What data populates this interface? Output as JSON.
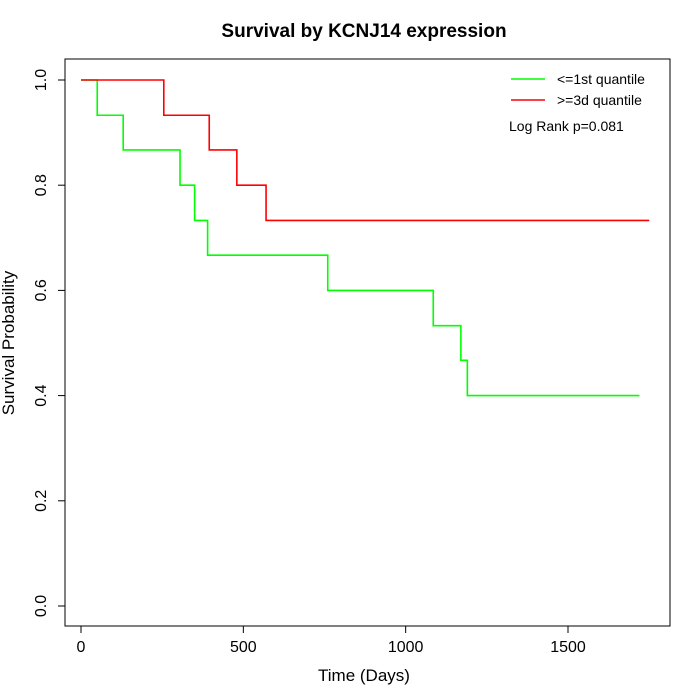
{
  "chart_data": {
    "type": "line",
    "step": true,
    "title": "Survival by KCNJ14 expression",
    "xlabel": "Time (Days)",
    "ylabel": "Survival Probability",
    "xlim": [
      0,
      1750
    ],
    "ylim": [
      0,
      1
    ],
    "xticks": [
      0,
      500,
      1000,
      1500
    ],
    "yticks": [
      0.0,
      0.2,
      0.4,
      0.6,
      0.8,
      1.0
    ],
    "xtick_labels": [
      "0",
      "500",
      "1000",
      "1500"
    ],
    "ytick_labels": [
      "0.0",
      "0.2",
      "0.4",
      "0.6",
      "0.8",
      "1.0"
    ],
    "grid": false,
    "legend_position": "top-right",
    "annotation": "Log Rank p=0.081",
    "series": [
      {
        "name": "<=1st quantile",
        "color": "#00ff00",
        "x": [
          0,
          50,
          130,
          305,
          350,
          390,
          760,
          1085,
          1170,
          1190,
          1720
        ],
        "y": [
          1.0,
          0.933,
          0.867,
          0.8,
          0.733,
          0.667,
          0.6,
          0.533,
          0.467,
          0.4,
          0.4
        ]
      },
      {
        "name": ">=3d quantile",
        "color": "#ff0000",
        "x": [
          0,
          255,
          395,
          480,
          570,
          1750
        ],
        "y": [
          1.0,
          0.933,
          0.867,
          0.8,
          0.733,
          0.733
        ]
      }
    ]
  }
}
